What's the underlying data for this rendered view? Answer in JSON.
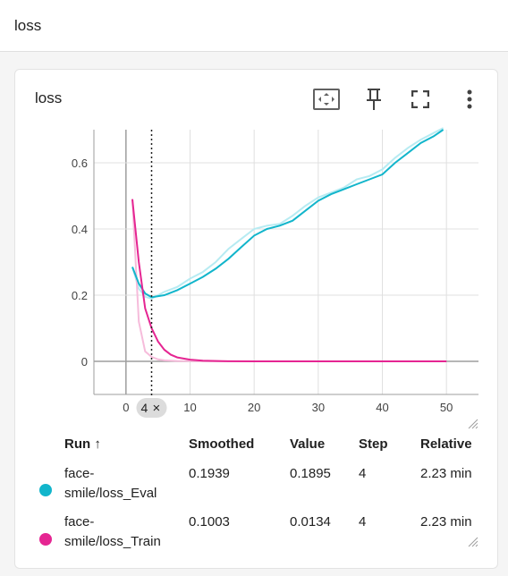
{
  "section": {
    "title": "loss"
  },
  "card": {
    "title": "loss"
  },
  "toolbar": {
    "fit_icon": "fit-domain-icon",
    "pin_icon": "pin-icon",
    "fullscreen_icon": "fullscreen-icon",
    "more_icon": "more-vert-icon"
  },
  "step_marker": {
    "label": "4",
    "close": "×"
  },
  "chart_data": {
    "type": "line",
    "xlim": [
      -5,
      55
    ],
    "ylim": [
      -0.1,
      0.7
    ],
    "x_ticks": [
      "0",
      "10",
      "20",
      "30",
      "40",
      "50"
    ],
    "x_tick_values": [
      0,
      10,
      20,
      30,
      40,
      50
    ],
    "y_ticks": [
      "0",
      "0.2",
      "0.4",
      "0.6"
    ],
    "y_tick_values": [
      0,
      0.2,
      0.4,
      0.6
    ],
    "grid": true,
    "series": [
      {
        "name": "face-smile/loss_Eval",
        "color": "#12b5cb",
        "raw_color": "#b7ebf2",
        "smoothed": [
          [
            1,
            0.285
          ],
          [
            2,
            0.235
          ],
          [
            3,
            0.205
          ],
          [
            4,
            0.1939
          ],
          [
            6,
            0.2
          ],
          [
            8,
            0.215
          ],
          [
            10,
            0.235
          ],
          [
            12,
            0.255
          ],
          [
            14,
            0.28
          ],
          [
            16,
            0.31
          ],
          [
            18,
            0.345
          ],
          [
            20,
            0.38
          ],
          [
            22,
            0.4
          ],
          [
            24,
            0.41
          ],
          [
            26,
            0.425
          ],
          [
            28,
            0.455
          ],
          [
            30,
            0.485
          ],
          [
            32,
            0.505
          ],
          [
            34,
            0.52
          ],
          [
            36,
            0.535
          ],
          [
            38,
            0.55
          ],
          [
            40,
            0.565
          ],
          [
            42,
            0.6
          ],
          [
            44,
            0.63
          ],
          [
            46,
            0.66
          ],
          [
            48,
            0.68
          ],
          [
            49.5,
            0.7
          ]
        ],
        "raw": [
          [
            1,
            0.285
          ],
          [
            2,
            0.22
          ],
          [
            3,
            0.195
          ],
          [
            4,
            0.1895
          ],
          [
            6,
            0.21
          ],
          [
            8,
            0.225
          ],
          [
            10,
            0.25
          ],
          [
            12,
            0.27
          ],
          [
            14,
            0.3
          ],
          [
            16,
            0.34
          ],
          [
            18,
            0.37
          ],
          [
            20,
            0.4
          ],
          [
            22,
            0.41
          ],
          [
            24,
            0.415
          ],
          [
            26,
            0.44
          ],
          [
            28,
            0.47
          ],
          [
            30,
            0.495
          ],
          [
            32,
            0.51
          ],
          [
            34,
            0.525
          ],
          [
            36,
            0.55
          ],
          [
            38,
            0.56
          ],
          [
            40,
            0.58
          ],
          [
            42,
            0.615
          ],
          [
            44,
            0.645
          ],
          [
            46,
            0.67
          ],
          [
            48,
            0.69
          ],
          [
            49.5,
            0.705
          ]
        ]
      },
      {
        "name": "face-smile/loss_Train",
        "color": "#e52592",
        "raw_color": "#f6bcdb",
        "smoothed": [
          [
            1,
            0.49
          ],
          [
            2,
            0.3
          ],
          [
            3,
            0.16
          ],
          [
            4,
            0.1003
          ],
          [
            5,
            0.06
          ],
          [
            6,
            0.035
          ],
          [
            7,
            0.02
          ],
          [
            8,
            0.012
          ],
          [
            10,
            0.005
          ],
          [
            12,
            0.002
          ],
          [
            15,
            0.0005
          ],
          [
            20,
            0.0001
          ],
          [
            30,
            0
          ],
          [
            40,
            0
          ],
          [
            50,
            0
          ]
        ],
        "raw": [
          [
            1,
            0.49
          ],
          [
            2,
            0.12
          ],
          [
            3,
            0.03
          ],
          [
            4,
            0.0134
          ],
          [
            5,
            0.006
          ],
          [
            6,
            0.003
          ],
          [
            8,
            0.001
          ],
          [
            10,
            0.0005
          ],
          [
            15,
            0.0001
          ],
          [
            20,
            0
          ],
          [
            30,
            0
          ],
          [
            40,
            0
          ],
          [
            50,
            0
          ]
        ]
      }
    ],
    "cursor_x": 4
  },
  "table": {
    "headers": {
      "run": "Run ↑",
      "smoothed": "Smoothed",
      "value": "Value",
      "step": "Step",
      "relative": "Relative"
    },
    "rows": [
      {
        "run_line1": "face-",
        "run_line2": "smile/loss_Eval",
        "smoothed": "0.1939",
        "value": "0.1895",
        "step": "4",
        "relative": "2.23 min",
        "color": "#12b5cb"
      },
      {
        "run_line1": "face-",
        "run_line2": "smile/loss_Train",
        "smoothed": "0.1003",
        "value": "0.0134",
        "step": "4",
        "relative": "2.23 min",
        "color": "#e52592"
      }
    ]
  }
}
